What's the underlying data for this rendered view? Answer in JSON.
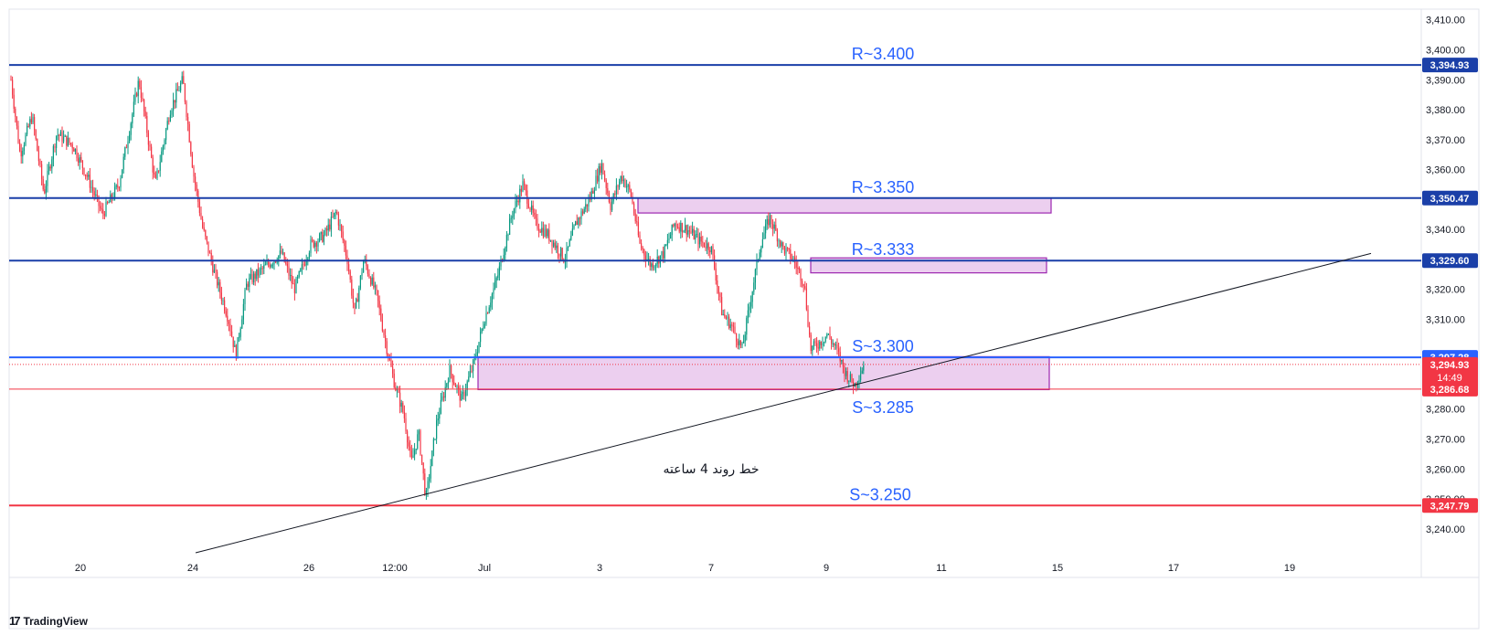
{
  "chart_data": {
    "type": "candlestick",
    "y_ticks": [
      3410,
      3400,
      3390,
      3380,
      3370,
      3360,
      3350,
      3340,
      3330,
      3320,
      3310,
      3300,
      3290,
      3280,
      3270,
      3260,
      3250,
      3240
    ],
    "y_tick_labels": [
      "3,410.00",
      "3,400.00",
      "3,390.00",
      "3,380.00",
      "3,370.00",
      "3,360.00",
      "",
      "3,340.00",
      "",
      "3,320.00",
      "3,310.00",
      "",
      "",
      "3,280.00",
      "3,270.00",
      "3,260.00",
      "3,250.00",
      "3,240.00"
    ],
    "ylim": [
      3232,
      3414
    ],
    "x_labels": [
      "20",
      "24",
      "26",
      "12:00",
      "Jul",
      "3",
      "7",
      "9",
      "11",
      "15",
      "17",
      "19"
    ],
    "levels": [
      {
        "label": "R~3.400",
        "price": 3394.93,
        "tag": "3,394.93",
        "color": "#1a3fa8"
      },
      {
        "label": "R~3.350",
        "price": 3350.47,
        "tag": "3,350.47",
        "color": "#1a3fa8"
      },
      {
        "label": "R~3.333",
        "price": 3329.6,
        "tag": "3,329.60",
        "color": "#1a3fa8"
      },
      {
        "label": "S~3.300",
        "price": 3297.28,
        "tag": "3,297.28",
        "color": "#2962ff"
      },
      {
        "label": "S~3.250",
        "price": 3247.79,
        "tag": "3,247.79",
        "color": "#f23645"
      }
    ],
    "support_line": {
      "price": 3286.68,
      "tag": "3,286.68",
      "color": "#f23645"
    },
    "current_price": {
      "price": 3294.93,
      "tag": "3,294.93",
      "countdown": "14:49",
      "color": "#f23645"
    },
    "extra_label": "S~3.285",
    "zones": [
      {
        "from": 3345.5,
        "to": 3350.5
      },
      {
        "from": 3325.5,
        "to": 3330.5
      },
      {
        "from": 3286.5,
        "to": 3297.5
      }
    ],
    "trendline": {
      "label": "خط روند 4 ساعته",
      "start_price": 3232,
      "end_price": 3332
    },
    "colors": {
      "up": "#089981",
      "down": "#f23645",
      "zone_fill": "#e9c7ec",
      "zone_stroke": "#9c27b0"
    }
  },
  "branding": {
    "name": "TradingView",
    "logo": "17"
  }
}
